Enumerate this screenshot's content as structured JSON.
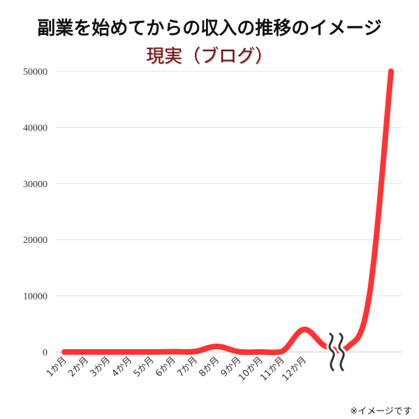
{
  "title": "副業を始めてからの収入の推移のイメージ",
  "subtitle": "現実（ブログ）",
  "note": "※イメージです",
  "colors": {
    "line": "#ff3333",
    "grid": "#e0e0e0",
    "axis": "#555555"
  },
  "chart_data": {
    "type": "line",
    "title": "副業を始めてからの収入の推移のイメージ",
    "subtitle": "現実（ブログ）",
    "xlabel": "",
    "ylabel": "",
    "ylim": [
      0,
      50000
    ],
    "yticks": [
      0,
      10000,
      20000,
      30000,
      40000,
      50000
    ],
    "grid": true,
    "categories": [
      "1か月",
      "2か月",
      "3か月",
      "4か月",
      "5か月",
      "6か月",
      "7か月",
      "8か月",
      "9か月",
      "10か月",
      "11か月",
      "12か月",
      "",
      "",
      "",
      ""
    ],
    "values": [
      0,
      0,
      0,
      0,
      0,
      50,
      80,
      1000,
      50,
      0,
      100,
      4000,
      1000,
      800,
      10000,
      50000
    ],
    "break_after_index": 12,
    "annotation": "〜",
    "series": [
      {
        "values": [
          0,
          0,
          0,
          0,
          0,
          50,
          80,
          1000,
          50,
          0,
          100,
          4000,
          1000,
          800,
          10000,
          50000
        ]
      }
    ]
  }
}
